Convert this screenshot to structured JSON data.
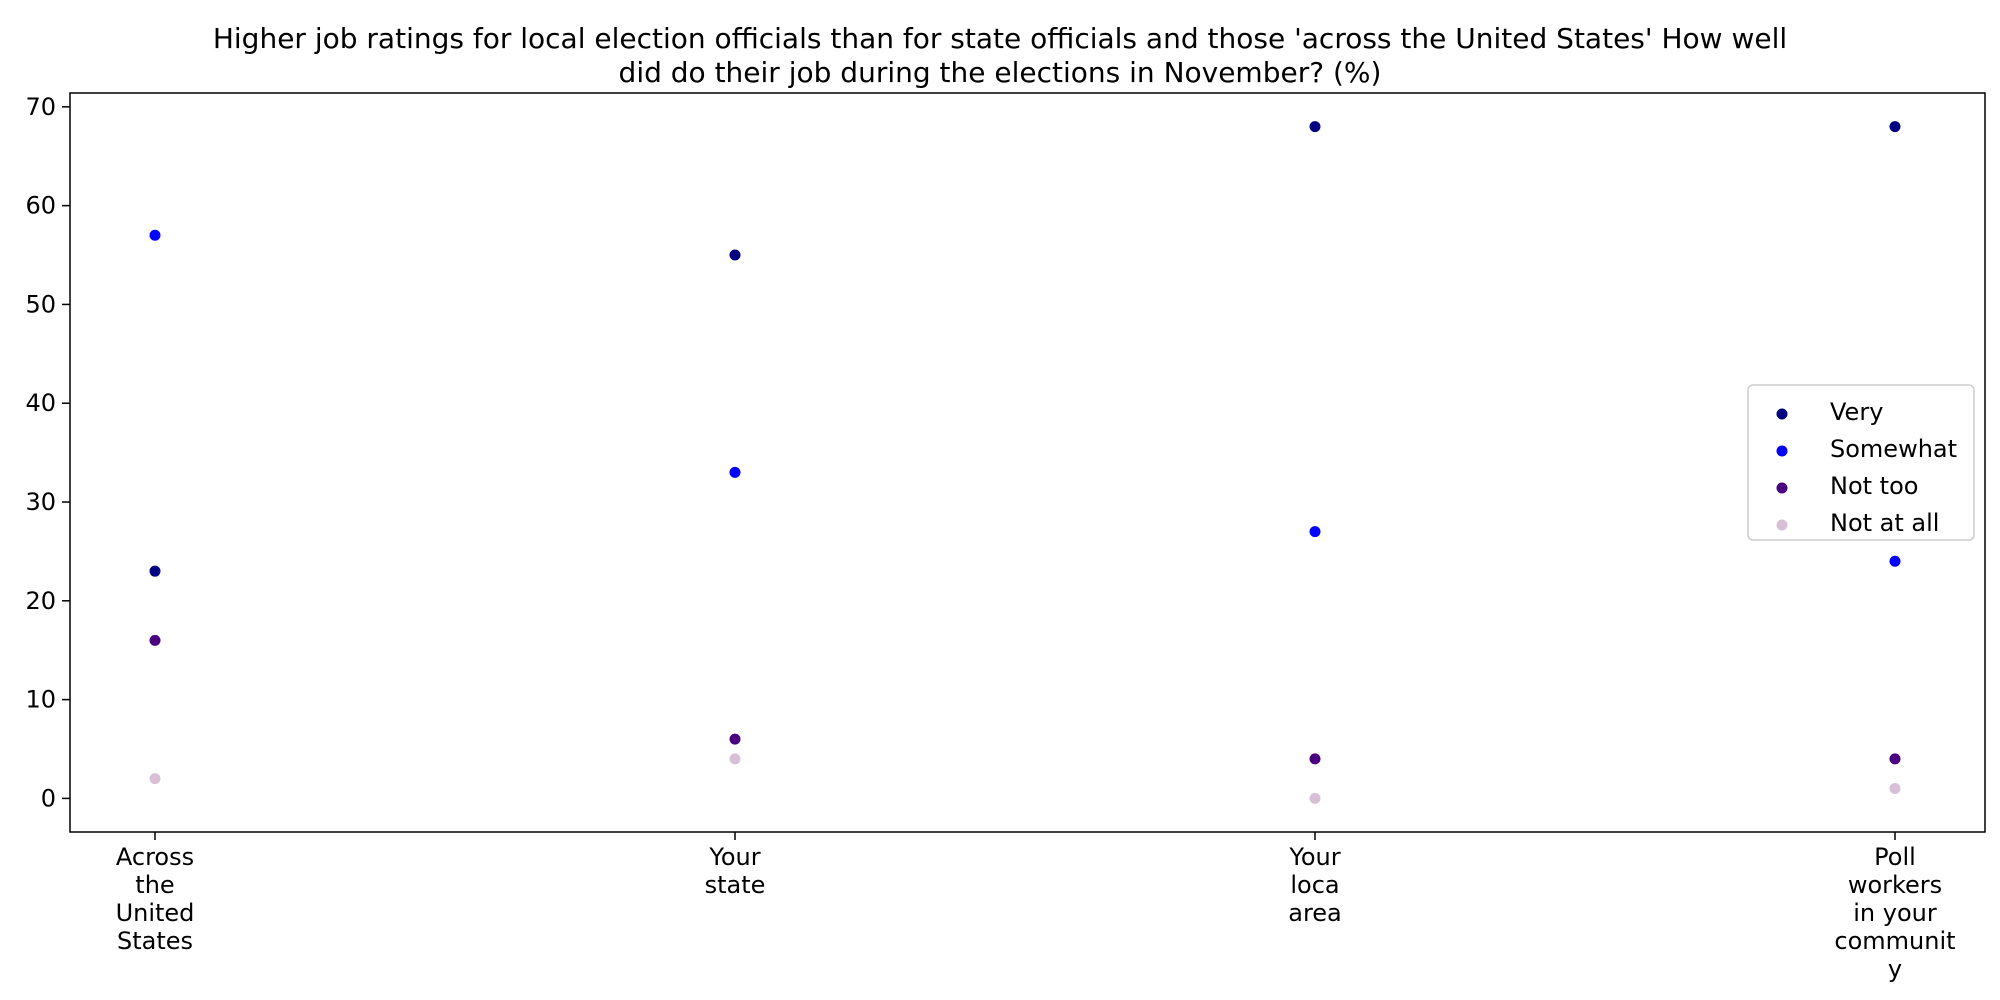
{
  "chart_data": {
    "type": "scatter",
    "title": "Higher job ratings for local election officials than for state officials and those 'across the United States' How well did do their job during the elections in November? (%)",
    "title_lines": [
      "Higher job ratings for local election officials than for state officials and those 'across the United States' How well",
      "did do their job during the elections in November? (%)"
    ],
    "xlabel": "",
    "ylabel": "",
    "categories": [
      "Across the United States",
      "Your state",
      "Your loca area",
      "Poll workers in your community"
    ],
    "category_lines": [
      [
        "Across",
        "the",
        "United",
        "States"
      ],
      [
        "Your",
        "state"
      ],
      [
        "Your",
        "loca",
        "area"
      ],
      [
        "Poll",
        "workers",
        "in your",
        "communit",
        "y"
      ]
    ],
    "series": [
      {
        "name": "Very",
        "color": "#000080",
        "values": [
          23,
          55,
          68,
          68
        ]
      },
      {
        "name": "Somewhat",
        "color": "#0000ff",
        "values": [
          57,
          33,
          27,
          24
        ]
      },
      {
        "name": "Not too",
        "color": "#4b0082",
        "values": [
          16,
          6,
          4,
          4
        ]
      },
      {
        "name": "Not at all",
        "color": "#d8bfd8",
        "values": [
          2,
          4,
          0,
          1
        ]
      }
    ],
    "ylim": [
      -3.4,
      71.4
    ],
    "yticks": [
      0,
      10,
      20,
      30,
      40,
      50,
      60,
      70
    ],
    "grid": false,
    "legend_position": "center-right"
  }
}
